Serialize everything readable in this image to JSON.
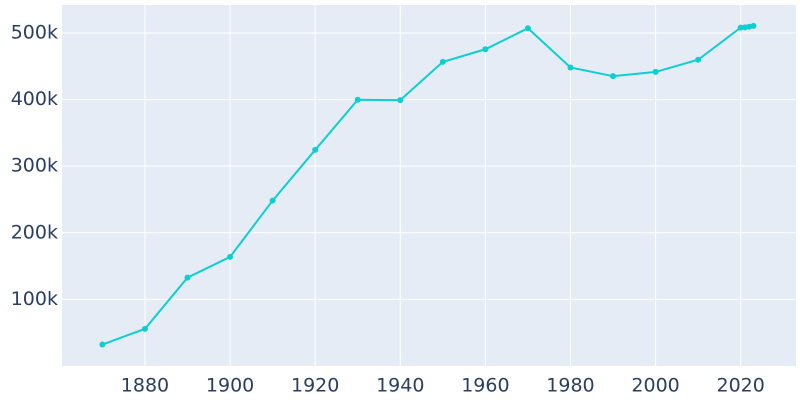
{
  "chart_data": {
    "type": "line",
    "x": [
      1870,
      1880,
      1890,
      1900,
      1910,
      1920,
      1930,
      1940,
      1950,
      1960,
      1970,
      1980,
      1990,
      2000,
      2010,
      2020,
      2021,
      2022,
      2023
    ],
    "values": [
      32260,
      55785,
      132716,
      163752,
      248381,
      324410,
      399746,
      399178,
      456622,
      475539,
      507087,
      448159,
      435146,
      441545,
      459787,
      508090,
      508394,
      509297,
      510704
    ],
    "color": "#0dcfcf",
    "xlim": [
      1860.5,
      2033
    ],
    "xticks": [
      1880,
      1900,
      1920,
      1940,
      1960,
      1980,
      2000,
      2020
    ],
    "ylim": [
      0,
      542000
    ],
    "yticks": [
      {
        "value": 100000,
        "label": "100k"
      },
      {
        "value": 200000,
        "label": "200k"
      },
      {
        "value": 300000,
        "label": "300k"
      },
      {
        "value": 400000,
        "label": "400k"
      },
      {
        "value": 500000,
        "label": "500k"
      }
    ],
    "grid": true
  }
}
